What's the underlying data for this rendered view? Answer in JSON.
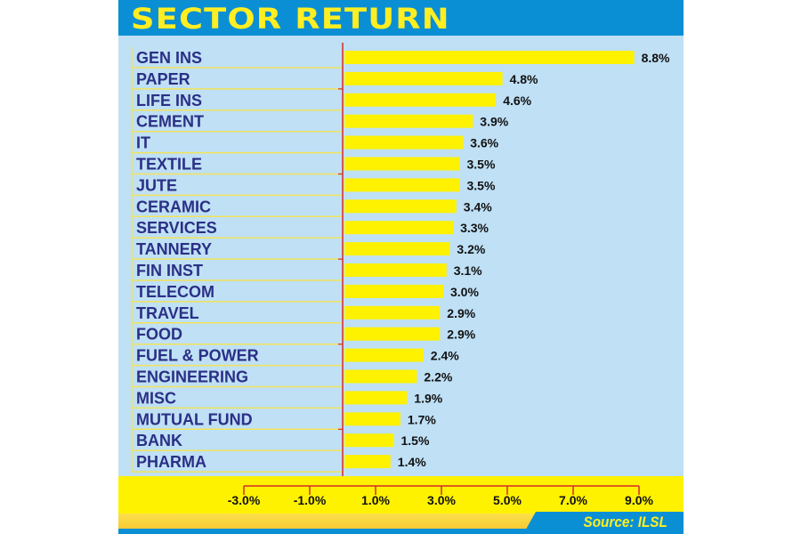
{
  "chart_data": {
    "type": "bar",
    "orientation": "horizontal",
    "title": "SECTOR RETURN",
    "source": "Source: ILSL",
    "categories": [
      "GEN INS",
      "PAPER",
      "LIFE INS",
      "CEMENT",
      "IT",
      "TEXTILE",
      "JUTE",
      "CERAMIC",
      "SERVICES",
      "TANNERY",
      "FIN INST",
      "TELECOM",
      "TRAVEL",
      "FOOD",
      "FUEL & POWER",
      "ENGINEERING",
      "MISC",
      "MUTUAL FUND",
      "BANK",
      "PHARMA"
    ],
    "values": [
      8.8,
      4.8,
      4.6,
      3.9,
      3.6,
      3.5,
      3.5,
      3.4,
      3.3,
      3.2,
      3.1,
      3.0,
      2.9,
      2.9,
      2.4,
      2.2,
      1.9,
      1.7,
      1.5,
      1.4
    ],
    "value_labels": [
      "8.8%",
      "4.8%",
      "4.6%",
      "3.9%",
      "3.6%",
      "3.5%",
      "3.5%",
      "3.4%",
      "3.3%",
      "3.2%",
      "3.1%",
      "3.0%",
      "2.9%",
      "2.9%",
      "2.4%",
      "2.2%",
      "1.9%",
      "1.7%",
      "1.5%",
      "1.4%"
    ],
    "xticks": [
      -3,
      -1,
      1,
      3,
      5,
      7,
      9
    ],
    "xtick_labels": [
      "-3.0%",
      "-1.0%",
      "1.0%",
      "3.0%",
      "5.0%",
      "7.0%",
      "9.0%"
    ],
    "xlim": [
      -3,
      9
    ],
    "colors": {
      "bar": "#fff200",
      "label": "#2b2f86",
      "axis": "#d42a2a",
      "background": "#bfe0f5",
      "header": "#0a8fd4"
    }
  }
}
